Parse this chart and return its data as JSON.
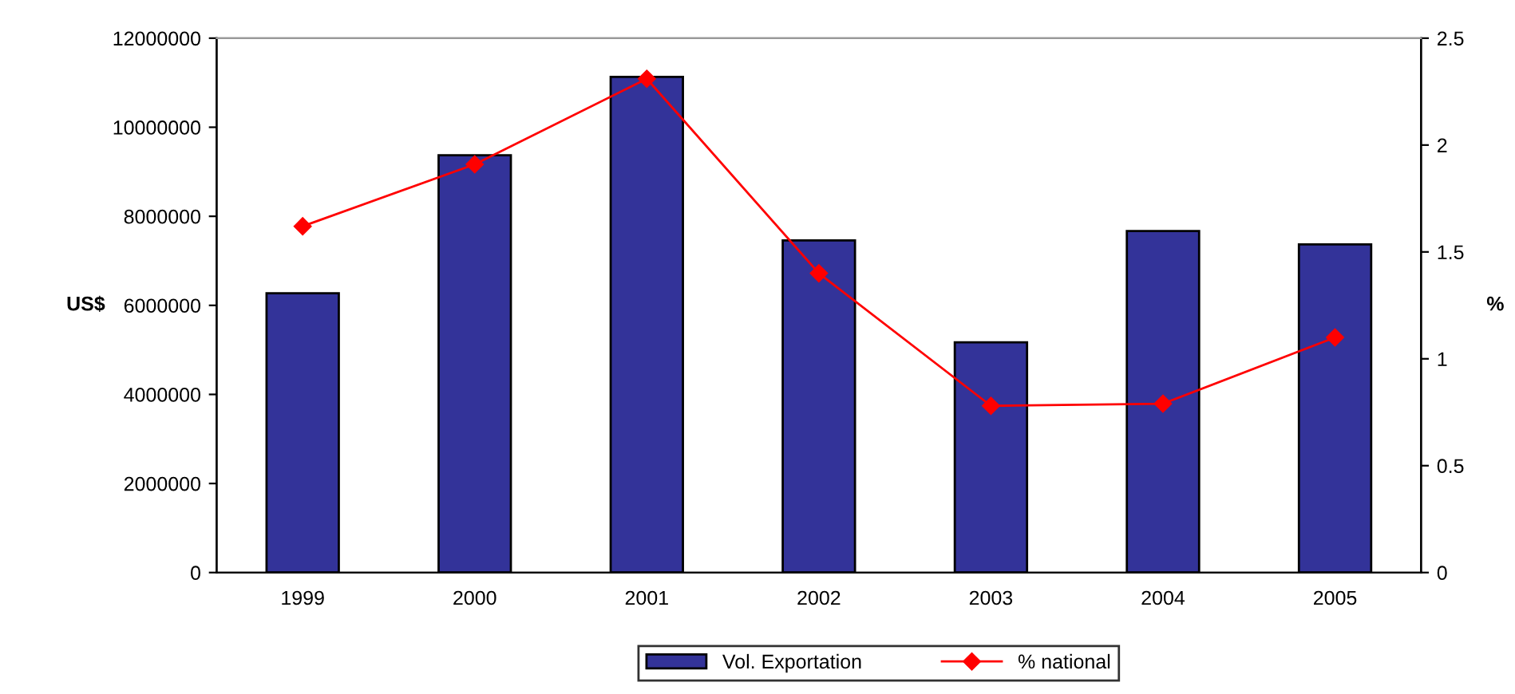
{
  "chart_data": {
    "type": "bar",
    "categories": [
      "1999",
      "2000",
      "2001",
      "2002",
      "2003",
      "2004",
      "2005"
    ],
    "series": [
      {
        "name": "Vol. Exportation",
        "color": "#333399",
        "values": [
          6270000,
          9370000,
          11130000,
          7460000,
          5170000,
          7670000,
          7370000
        ]
      },
      {
        "name": "% national",
        "type": "line",
        "axis": "y2",
        "color": "#ff0000",
        "marker": "diamond",
        "values": [
          1.62,
          1.91,
          2.31,
          1.4,
          0.78,
          0.79,
          1.1
        ]
      }
    ],
    "ylabel": "US$",
    "y2label": "%",
    "ylim": [
      0,
      12000000
    ],
    "yticks": [
      0,
      2000000,
      4000000,
      6000000,
      8000000,
      10000000,
      12000000
    ],
    "y2lim": [
      0,
      2.5
    ],
    "y2ticks": [
      0,
      {
        "value": 0.5,
        "label": "0.5"
      },
      1,
      {
        "value": 1.5,
        "label": "1.5"
      },
      2,
      {
        "value": 2.5,
        "label": "2.5"
      }
    ],
    "grid": false,
    "legend": "bottom"
  }
}
